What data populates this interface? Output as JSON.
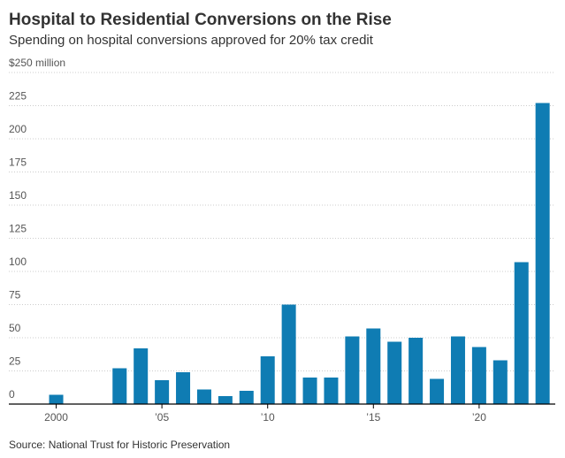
{
  "chart_data": {
    "type": "bar",
    "title": "Hospital to Residential Conversions on the Rise",
    "subtitle": "Spending on hospital conversions approved for 20% tax credit",
    "source": "Source: National Trust for Historic Preservation",
    "x": [
      2000,
      2003,
      2004,
      2005,
      2006,
      2007,
      2008,
      2009,
      2010,
      2011,
      2012,
      2013,
      2014,
      2015,
      2016,
      2017,
      2018,
      2019,
      2020,
      2021,
      2022,
      2023
    ],
    "values": [
      7,
      27,
      42,
      18,
      24,
      11,
      6,
      10,
      36,
      75,
      20,
      20,
      51,
      57,
      47,
      50,
      19,
      51,
      43,
      33,
      107,
      227
    ],
    "color": "#0f7cb3",
    "xlim": [
      1999.1,
      2023.6
    ],
    "xticks": [
      2000,
      {
        "value": 2005,
        "label": "’05"
      },
      {
        "value": 2010,
        "label": "’10"
      },
      {
        "value": 2015,
        "label": "’15"
      },
      {
        "value": 2020,
        "label": "’20"
      }
    ],
    "ylim": [
      0,
      250
    ],
    "yticks": [
      0,
      25,
      50,
      75,
      100,
      125,
      150,
      175,
      200,
      225,
      {
        "value": 250,
        "label": "$250 million"
      }
    ],
    "grid": true
  }
}
